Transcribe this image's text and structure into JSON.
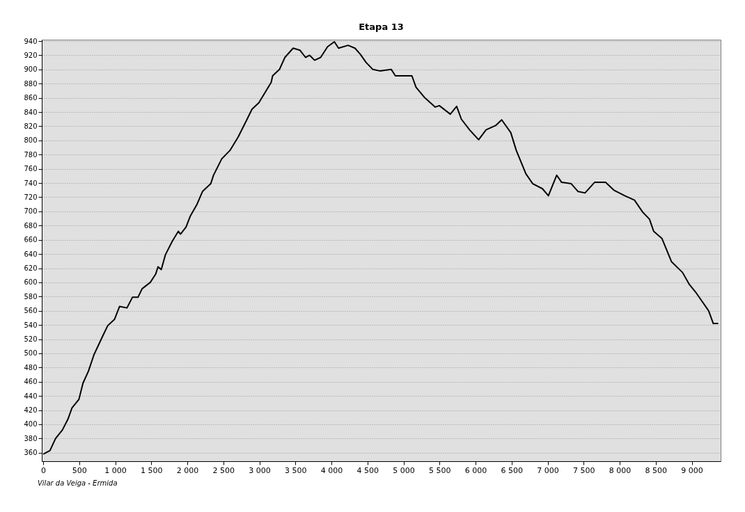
{
  "chart_data": {
    "type": "line",
    "title": "Etapa 13",
    "annotations": [
      "Vilar da Veiga - Ermida"
    ],
    "x": [
      0,
      94,
      171,
      266,
      342,
      399,
      495,
      552,
      628,
      704,
      819,
      895,
      990,
      1059,
      1162,
      1238,
      1315,
      1372,
      1486,
      1562,
      1593,
      1638,
      1696,
      1791,
      1875,
      1905,
      1982,
      2039,
      2134,
      2210,
      2325,
      2363,
      2477,
      2592,
      2706,
      2820,
      2897,
      2992,
      3087,
      3164,
      3183,
      3278,
      3354,
      3468,
      3564,
      3640,
      3697,
      3766,
      3850,
      3945,
      4040,
      4098,
      4231,
      4326,
      4403,
      4479,
      4574,
      4670,
      4830,
      4887,
      5020,
      5116,
      5173,
      5287,
      5440,
      5497,
      5649,
      5737,
      5802,
      5916,
      6042,
      6145,
      6278,
      6362,
      6488,
      6564,
      6698,
      6793,
      6927,
      7010,
      7125,
      7194,
      7327,
      7422,
      7518,
      7651,
      7803,
      7918,
      8070,
      8204,
      8318,
      8413,
      8471,
      8585,
      8719,
      8871,
      8966,
      9062,
      9233,
      9298,
      9367
    ],
    "series": [
      {
        "color": "#000000",
        "values": [
          358,
          363,
          380,
          392,
          407,
          423,
          435,
          458,
          475,
          498,
          523,
          539,
          548,
          566,
          564,
          579,
          579,
          591,
          600,
          612,
          622,
          618,
          639,
          658,
          672,
          668,
          678,
          693,
          710,
          728,
          739,
          751,
          774,
          786,
          805,
          828,
          844,
          853,
          869,
          882,
          891,
          900,
          917,
          930,
          927,
          917,
          920,
          913,
          917,
          932,
          939,
          930,
          934,
          930,
          921,
          910,
          900,
          898,
          900,
          891,
          891,
          891,
          875,
          861,
          847,
          849,
          837,
          848,
          830,
          815,
          801,
          815,
          821,
          829,
          811,
          786,
          753,
          739,
          732,
          722,
          751,
          741,
          739,
          728,
          726,
          741,
          741,
          730,
          722,
          716,
          699,
          689,
          672,
          662,
          629,
          614,
          597,
          585,
          560,
          542,
          542
        ]
      }
    ],
    "xlim": [
      -20,
      9400
    ],
    "ylim": [
      348,
      942
    ],
    "xticks": [
      0,
      500,
      {
        "value": 1000,
        "label": "1 000"
      },
      {
        "value": 1500,
        "label": "1 500"
      },
      {
        "value": 2000,
        "label": "2 000"
      },
      {
        "value": 2500,
        "label": "2 500"
      },
      {
        "value": 3000,
        "label": "3 000"
      },
      {
        "value": 3500,
        "label": "3 500"
      },
      {
        "value": 4000,
        "label": "4 000"
      },
      {
        "value": 4500,
        "label": "4 500"
      },
      {
        "value": 5000,
        "label": "5 000"
      },
      {
        "value": 5500,
        "label": "5 500"
      },
      {
        "value": 6000,
        "label": "6 000"
      },
      {
        "value": 6500,
        "label": "6 500"
      },
      {
        "value": 7000,
        "label": "7 000"
      },
      {
        "value": 7500,
        "label": "7 500"
      },
      {
        "value": 8000,
        "label": "8 000"
      },
      {
        "value": 8500,
        "label": "8 500"
      },
      {
        "value": 9000,
        "label": "9 000"
      }
    ],
    "yticks": [
      360,
      380,
      400,
      420,
      440,
      460,
      480,
      500,
      520,
      540,
      560,
      580,
      600,
      620,
      640,
      660,
      680,
      700,
      720,
      740,
      760,
      780,
      800,
      820,
      840,
      860,
      880,
      900,
      920,
      940
    ],
    "grid": "y",
    "marker": "none",
    "line_style": "solid"
  }
}
